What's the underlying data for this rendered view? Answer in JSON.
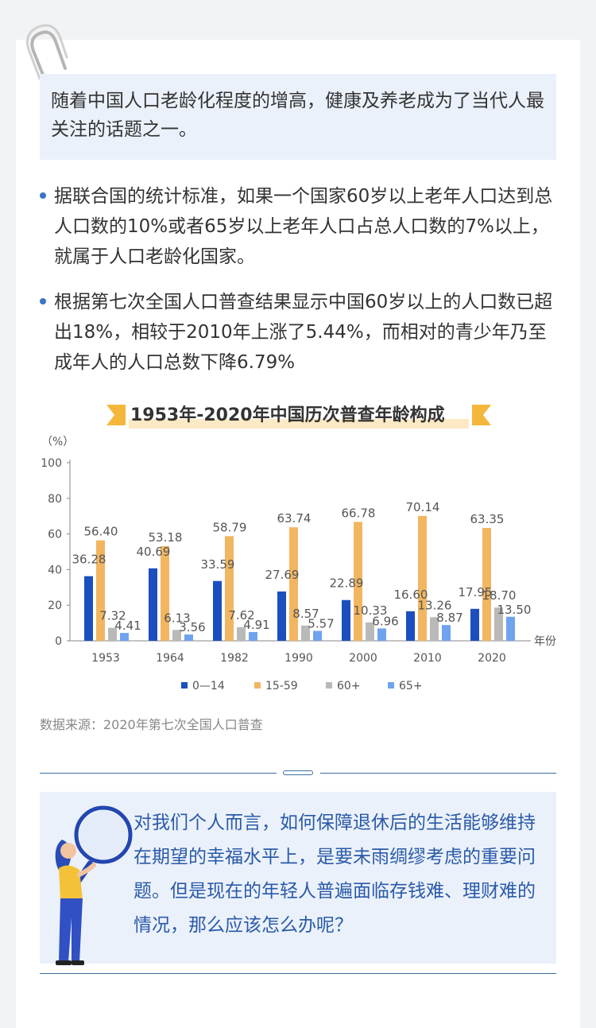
{
  "intro": "随着中国人口老龄化程度的增高，健康及养老成为了当代人最关注的话题之一。",
  "bullets": [
    "据联合国的统计标准，如果一个国家60岁以上老年人口达到总人口数的10%或者65岁以上老年人口占总人口数的7%以上，就属于人口老龄化国家。",
    "根据第七次全国人口普查结果显示中国60岁以上的人口数已超出18%，相较于2010年上涨了5.44%，而相对的青少年乃至成年人的人口总数下降6.79%"
  ],
  "colors": {
    "s0_14": "#1b4fbd",
    "s15_59": "#f2b661",
    "s60": "#b9b9b9",
    "s65": "#6fa3ef",
    "accent": "#2a5aa8"
  },
  "chart_data": {
    "type": "bar",
    "title": "1953年-2020年中国历次普查年龄构成",
    "ylabel": "（%）",
    "xlabel": "年份",
    "ylim": [
      0,
      100
    ],
    "yticks": [
      0,
      20,
      40,
      60,
      80,
      100
    ],
    "categories": [
      "1953",
      "1964",
      "1982",
      "1990",
      "2000",
      "2010",
      "2020"
    ],
    "series": [
      {
        "name": "0—14",
        "values": [
          36.28,
          40.69,
          33.59,
          27.69,
          22.89,
          16.6,
          17.95
        ]
      },
      {
        "name": "15-59",
        "values": [
          56.4,
          53.18,
          58.79,
          63.74,
          66.78,
          70.14,
          63.35
        ]
      },
      {
        "name": "60+",
        "values": [
          7.32,
          6.13,
          7.62,
          8.57,
          10.33,
          13.26,
          18.7
        ]
      },
      {
        "name": "65+",
        "values": [
          4.41,
          3.56,
          4.91,
          5.57,
          6.96,
          8.87,
          13.5
        ]
      }
    ],
    "value_labels": [
      [
        "36.28",
        "40.69",
        "33.59",
        "27.69",
        "22.89",
        "16.60",
        "17.95"
      ],
      [
        "56.40",
        "53.18",
        "58.79",
        "63.74",
        "66.78",
        "70.14",
        "63.35"
      ],
      [
        "7.32",
        "6.13",
        "7.62",
        "8.57",
        "10.33",
        "13.26",
        "18.70"
      ],
      [
        "4.41",
        "3.56",
        "4.91",
        "5.57",
        "6.96",
        "8.87",
        "13.50"
      ]
    ],
    "legend_position": "bottom",
    "grid": false
  },
  "source": "数据来源：2020年第七次全国人口普查",
  "question": "对我们个人而言，如何保障退休后的生活能够维持在期望的幸福水平上，是要未雨绸缪考虑的重要问题。但是现在的年轻人普遍面临存钱难、理财难的情况，那么应该怎么办呢？"
}
